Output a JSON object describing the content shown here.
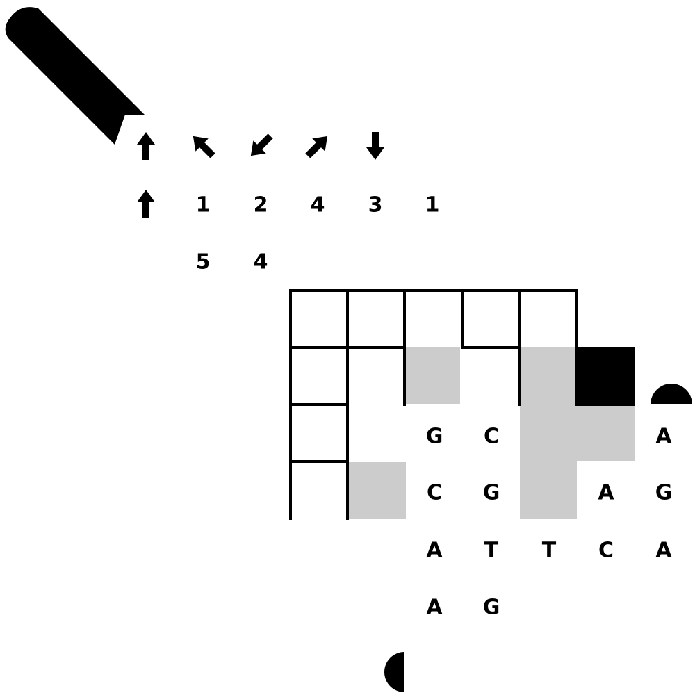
{
  "colors": {
    "ink": "#000000",
    "shade": "#cccccc",
    "background": "#ffffff"
  },
  "icons": {
    "pencil": "pencil-icon",
    "arrow": "arrow-icon",
    "half_circle": "half-circle-icon"
  },
  "arrow_clues": [
    {
      "name": "up"
    },
    {
      "name": "up-left"
    },
    {
      "name": "down-left"
    },
    {
      "name": "up-right"
    },
    {
      "name": "down"
    }
  ],
  "row_clue_arrow": {
    "name": "up"
  },
  "number_clues": {
    "row1": [
      "1",
      "2",
      "4",
      "3",
      "1"
    ],
    "row2": [
      "5",
      "4"
    ]
  },
  "letters": {
    "row1": [
      "G",
      "C",
      "A"
    ],
    "row2": [
      "C",
      "G",
      "A",
      "G"
    ],
    "row3": [
      "A",
      "T",
      "T",
      "C",
      "A"
    ],
    "row4": [
      "A",
      "G"
    ]
  }
}
